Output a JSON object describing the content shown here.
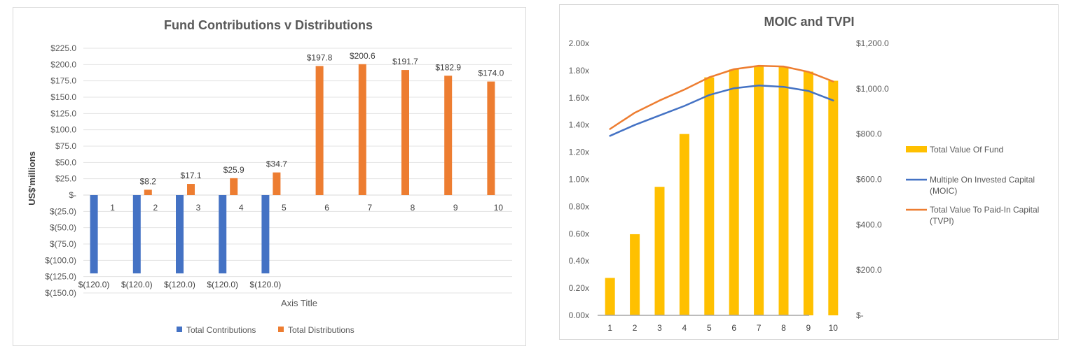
{
  "chart_data": [
    {
      "type": "bar",
      "title": "Fund Contributions v Distributions",
      "xlabel": "Axis Title",
      "ylabel": "US$'millions",
      "ylim": [
        -150,
        225
      ],
      "yticks": [
        "$225.0",
        "$200.0",
        "$175.0",
        "$150.0",
        "$125.0",
        "$100.0",
        "$75.0",
        "$50.0",
        "$25.0",
        "$-",
        "$(25.0)",
        "$(50.0)",
        "$(75.0)",
        "$(100.0)",
        "$(125.0)",
        "$(150.0)"
      ],
      "categories": [
        "1",
        "2",
        "3",
        "4",
        "5",
        "6",
        "7",
        "8",
        "9",
        "10"
      ],
      "series": [
        {
          "name": "Total Contributions",
          "color": "#4472c4",
          "values": [
            -120,
            -120,
            -120,
            -120,
            -120,
            null,
            null,
            null,
            null,
            null
          ],
          "labels": [
            "$(120.0)",
            "$(120.0)",
            "$(120.0)",
            "$(120.0)",
            "$(120.0)",
            "",
            "",
            "",
            "",
            ""
          ]
        },
        {
          "name": "Total Distributions",
          "color": "#ed7d31",
          "values": [
            null,
            8.2,
            17.1,
            25.9,
            34.7,
            197.8,
            200.6,
            191.7,
            182.9,
            174.0
          ],
          "labels": [
            "",
            "$8.2",
            "$17.1",
            "$25.9",
            "$34.7",
            "$197.8",
            "$200.6",
            "$191.7",
            "$182.9",
            "$174.0"
          ]
        }
      ],
      "grid": true,
      "legend": "bottom"
    },
    {
      "type": "bar-line combo",
      "title": "MOIC and TVPI",
      "categories": [
        "1",
        "2",
        "3",
        "4",
        "5",
        "6",
        "7",
        "8",
        "9",
        "10"
      ],
      "ylim": [
        0,
        2.0
      ],
      "yticks": [
        "2.00x",
        "1.80x",
        "1.60x",
        "1.40x",
        "1.20x",
        "1.00x",
        "0.80x",
        "0.60x",
        "0.40x",
        "0.20x",
        "0.00x"
      ],
      "y2lim": [
        0,
        1200
      ],
      "y2ticks": [
        "$1,200.0",
        "$1,000.0",
        "$800.0",
        "$600.0",
        "$400.0",
        "$200.0",
        "$-"
      ],
      "series": [
        {
          "name": "Total Value Of Fund",
          "kind": "bar",
          "axis": "secondary",
          "color": "#ffc000",
          "values": [
            165,
            358,
            567,
            800,
            1050,
            1085,
            1100,
            1097,
            1075,
            1035
          ]
        },
        {
          "name": "Multiple On Invested Capital (MOIC)",
          "kind": "line",
          "axis": "primary",
          "color": "#4472c4",
          "values": [
            1.32,
            1.4,
            1.47,
            1.54,
            1.62,
            1.67,
            1.69,
            1.68,
            1.65,
            1.58
          ]
        },
        {
          "name": "Total Value To Paid-In Capital (TVPI)",
          "kind": "line",
          "axis": "primary",
          "color": "#ed7d31",
          "values": [
            1.37,
            1.49,
            1.58,
            1.66,
            1.75,
            1.81,
            1.835,
            1.83,
            1.79,
            1.72
          ]
        }
      ],
      "grid": false,
      "legend": "right"
    }
  ]
}
